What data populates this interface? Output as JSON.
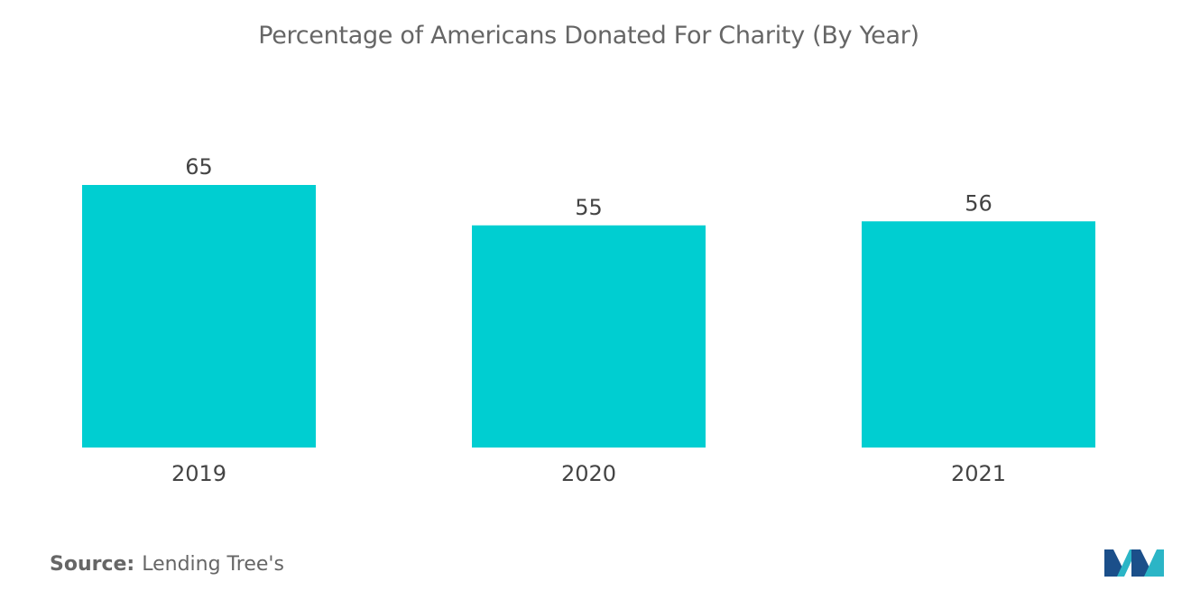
{
  "chart_data": {
    "type": "bar",
    "title": "Percentage of Americans Donated For Charity (By Year)",
    "categories": [
      "2019",
      "2020",
      "2021"
    ],
    "values": [
      65,
      55,
      56
    ],
    "xlabel": "",
    "ylabel": "",
    "ylim": [
      0,
      65
    ],
    "grid": false,
    "legend": "none",
    "bar_color": "#00CED1",
    "label_color": "#444444"
  },
  "source": {
    "label": "Source:",
    "text": "Lending Tree's"
  },
  "logo": {
    "icon": "mordor-intelligence-logo-icon",
    "colors": [
      "#1B4F8A",
      "#2BB5C6"
    ]
  }
}
